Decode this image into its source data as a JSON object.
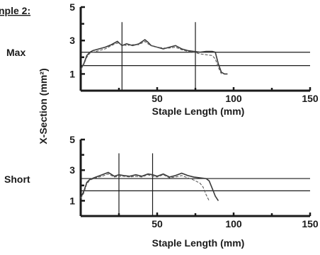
{
  "header": {
    "sample_label": "nple 2:"
  },
  "y_axis_title": "X-Section (mm²)",
  "chart_data": [
    {
      "type": "line",
      "panel_label": "Max",
      "xlabel": "Staple Length (mm)",
      "ylabel": "X-Section (mm²)",
      "xlim": [
        0,
        150
      ],
      "ylim": [
        0,
        5
      ],
      "x_ticks": [
        50,
        100,
        150
      ],
      "x_ticks_labeled": [
        [
          50,
          "50"
        ],
        [
          100,
          "100"
        ],
        [
          150,
          "150"
        ]
      ],
      "y_ticks_labeled": [
        [
          1,
          "1"
        ],
        [
          3,
          "3"
        ],
        [
          5,
          "5"
        ]
      ],
      "y_ticks_minor": [
        2,
        4
      ],
      "x_ticks_minor": [
        25,
        75,
        125
      ],
      "reference_lines": [
        {
          "orientation": "horizontal",
          "y": 2.3
        },
        {
          "orientation": "horizontal",
          "y": 1.5
        },
        {
          "orientation": "vertical",
          "x": 27
        },
        {
          "orientation": "vertical",
          "x": 75
        }
      ],
      "series": [
        {
          "x": [
            0,
            2,
            4,
            6,
            8,
            12,
            16,
            20,
            24,
            27,
            30,
            34,
            38,
            42,
            44,
            46,
            50,
            54,
            58,
            62,
            66,
            70,
            74,
            78,
            82,
            86,
            88,
            90,
            92,
            94,
            96
          ],
          "y": [
            1.3,
            1.6,
            2.1,
            2.3,
            2.4,
            2.5,
            2.6,
            2.75,
            2.95,
            2.7,
            2.8,
            2.7,
            2.8,
            3.05,
            2.9,
            2.7,
            2.6,
            2.5,
            2.6,
            2.7,
            2.5,
            2.4,
            2.35,
            2.3,
            2.35,
            2.35,
            2.3,
            1.6,
            1.1,
            1.0,
            1.0
          ]
        },
        {
          "x": [
            0,
            2,
            4,
            6,
            8,
            12,
            16,
            20,
            24,
            27,
            30,
            34,
            38,
            42,
            44,
            46,
            50,
            54,
            58,
            62,
            66,
            70,
            74,
            78,
            82,
            86,
            88,
            90,
            92
          ],
          "y": [
            1.25,
            1.55,
            2.0,
            2.25,
            2.3,
            2.4,
            2.5,
            2.7,
            2.85,
            2.75,
            2.7,
            2.75,
            2.75,
            2.95,
            2.8,
            2.7,
            2.6,
            2.55,
            2.55,
            2.6,
            2.45,
            2.35,
            2.3,
            2.2,
            2.15,
            2.1,
            1.9,
            1.4,
            1.0
          ]
        }
      ]
    },
    {
      "type": "line",
      "panel_label": "Short",
      "xlabel": "Staple Length (mm)",
      "ylabel": "X-Section (mm²)",
      "xlim": [
        0,
        150
      ],
      "ylim": [
        0,
        5
      ],
      "x_ticks": [
        50,
        100,
        150
      ],
      "x_ticks_labeled": [
        [
          50,
          "50"
        ],
        [
          100,
          "100"
        ],
        [
          150,
          "150"
        ]
      ],
      "y_ticks_labeled": [
        [
          1,
          "1"
        ],
        [
          3,
          "3"
        ],
        [
          5,
          "5"
        ]
      ],
      "y_ticks_minor": [
        2,
        4
      ],
      "x_ticks_minor": [
        25,
        75,
        125
      ],
      "reference_lines": [
        {
          "orientation": "horizontal",
          "y": 2.45
        },
        {
          "orientation": "horizontal",
          "y": 1.65
        },
        {
          "orientation": "vertical",
          "x": 25
        },
        {
          "orientation": "vertical",
          "x": 47
        }
      ],
      "series": [
        {
          "x": [
            0,
            2,
            4,
            6,
            10,
            14,
            18,
            22,
            25,
            28,
            32,
            36,
            40,
            44,
            47,
            50,
            54,
            58,
            62,
            66,
            70,
            74,
            78,
            82,
            84,
            86,
            88,
            90
          ],
          "y": [
            1.2,
            1.6,
            2.2,
            2.4,
            2.55,
            2.7,
            2.85,
            2.6,
            2.7,
            2.65,
            2.6,
            2.7,
            2.6,
            2.75,
            2.7,
            2.6,
            2.75,
            2.55,
            2.65,
            2.8,
            2.65,
            2.55,
            2.5,
            2.45,
            2.3,
            1.8,
            1.3,
            1.0
          ]
        },
        {
          "x": [
            0,
            2,
            4,
            6,
            10,
            14,
            18,
            22,
            25,
            28,
            32,
            36,
            40,
            44,
            47,
            50,
            54,
            58,
            62,
            66,
            70,
            74,
            78,
            80,
            82,
            84
          ],
          "y": [
            1.15,
            1.5,
            2.1,
            2.35,
            2.5,
            2.6,
            2.75,
            2.55,
            2.6,
            2.6,
            2.55,
            2.6,
            2.55,
            2.7,
            2.6,
            2.55,
            2.7,
            2.5,
            2.55,
            2.65,
            2.5,
            2.35,
            2.15,
            1.9,
            1.4,
            1.0
          ]
        }
      ]
    }
  ]
}
